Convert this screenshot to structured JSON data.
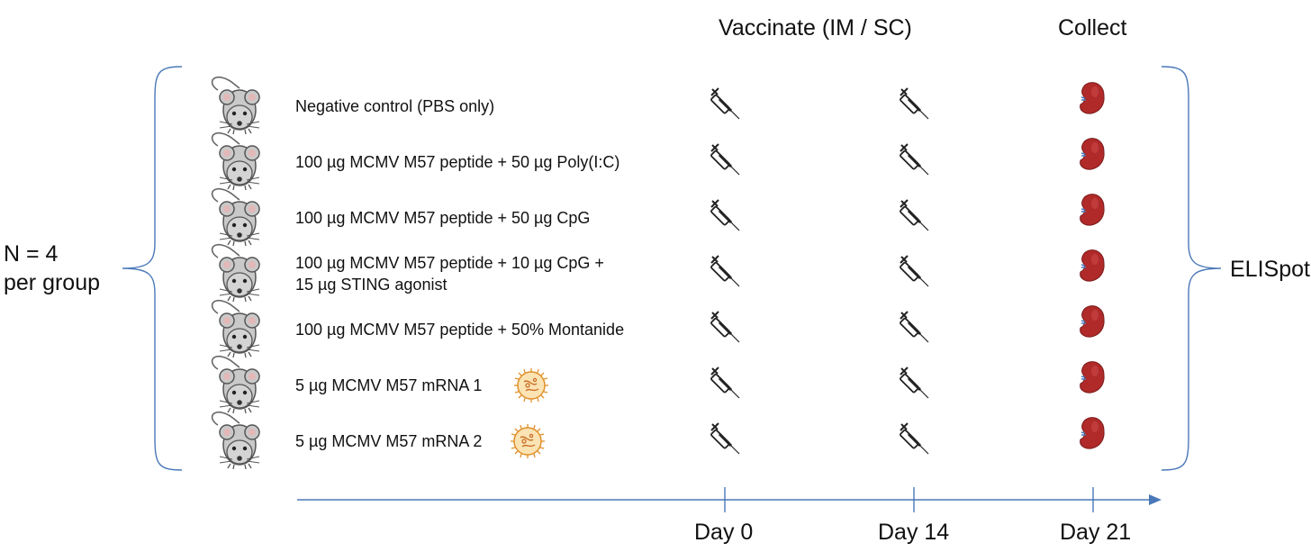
{
  "header": {
    "vaccinate": "Vaccinate (IM / SC)",
    "collect": "Collect"
  },
  "left_label": {
    "line1": "N = 4",
    "line2": "per group"
  },
  "right_label": "ELISpot",
  "groups": [
    {
      "lines": [
        "Negative control (PBS only)"
      ],
      "nanoparticle": false
    },
    {
      "lines": [
        "100 µg MCMV M57 peptide + 50 µg Poly(I:C)"
      ],
      "nanoparticle": false
    },
    {
      "lines": [
        "100 µg MCMV M57 peptide + 50 µg CpG"
      ],
      "nanoparticle": false
    },
    {
      "lines": [
        "100 µg MCMV M57 peptide + 10 µg CpG +",
        "15 µg STING agonist"
      ],
      "nanoparticle": false
    },
    {
      "lines": [
        "100 µg MCMV M57 peptide + 50% Montanide"
      ],
      "nanoparticle": false
    },
    {
      "lines": [
        "5 µg MCMV M57 mRNA 1"
      ],
      "nanoparticle": true
    },
    {
      "lines": [
        "5 µg MCMV M57 mRNA 2"
      ],
      "nanoparticle": true
    }
  ],
  "timeline": {
    "days": [
      "Day 0",
      "Day 14",
      "Day 21"
    ],
    "events": [
      "syringe-icon",
      "syringe-icon",
      "spleen-icon"
    ]
  },
  "colors": {
    "bracket": "#4a78b8",
    "axis": "#4a78b8",
    "mouse_body": "#c9c9c9",
    "mouse_outline": "#555555",
    "spleen": "#b02a2a",
    "nanoparticle": "#f0a030"
  }
}
